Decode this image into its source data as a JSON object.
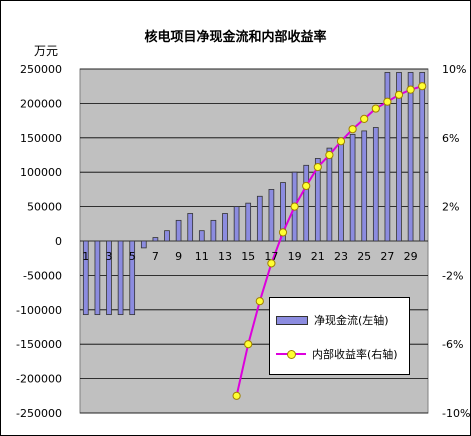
{
  "chart_data": {
    "type": "bar+line",
    "title": "核电项目净现金流和内部收益率",
    "left_axis": {
      "unit": "万元",
      "ylim": [
        -250000,
        250000
      ],
      "ticks": [
        "250000",
        "200000",
        "150000",
        "100000",
        "50000",
        "0",
        "-50000",
        "-100000",
        "-150000",
        "-200000",
        "-250000"
      ],
      "tick_values": [
        250000,
        200000,
        150000,
        100000,
        50000,
        0,
        -50000,
        -100000,
        -150000,
        -200000,
        -250000
      ]
    },
    "right_axis": {
      "ylim": [
        -10,
        10
      ],
      "ticks": [
        "10%",
        "6%",
        "2%",
        "-2%",
        "-6%",
        "-10%"
      ],
      "tick_values": [
        10,
        6,
        2,
        -2,
        -6,
        -10
      ]
    },
    "x": [
      1,
      2,
      3,
      4,
      5,
      6,
      7,
      8,
      9,
      10,
      11,
      12,
      13,
      14,
      15,
      16,
      17,
      18,
      19,
      20,
      21,
      22,
      23,
      24,
      25,
      26,
      27,
      28,
      29,
      30
    ],
    "x_tick_labels": [
      "1",
      "3",
      "5",
      "7",
      "9",
      "11",
      "13",
      "15",
      "17",
      "19",
      "21",
      "23",
      "25",
      "27",
      "29"
    ],
    "x_tick_values": [
      1,
      3,
      5,
      7,
      9,
      11,
      13,
      15,
      17,
      19,
      21,
      23,
      25,
      27,
      29
    ],
    "series": [
      {
        "name": "净现金流(左轴)",
        "type": "bar",
        "axis": "left",
        "values": [
          -107000,
          -107000,
          -107000,
          -107000,
          -107000,
          -10000,
          5000,
          15000,
          30000,
          40000,
          15000,
          30000,
          40000,
          50000,
          55000,
          65000,
          75000,
          85000,
          100000,
          110000,
          120000,
          135000,
          145000,
          155000,
          160000,
          165000,
          245000,
          245000,
          245000,
          245000
        ]
      },
      {
        "name": "内部收益率(右轴)",
        "type": "line",
        "axis": "right",
        "x": [
          14,
          15,
          16,
          17,
          18,
          19,
          20,
          21,
          22,
          23,
          24,
          25,
          26,
          27,
          28,
          29,
          30
        ],
        "values": [
          -9.0,
          -6.0,
          -3.5,
          -1.3,
          0.5,
          2.0,
          3.2,
          4.3,
          5.0,
          5.8,
          6.5,
          7.1,
          7.7,
          8.1,
          8.5,
          8.8,
          9.0
        ]
      }
    ],
    "grid": "horizontal major gridlines",
    "legend_position": "bottom-right"
  },
  "colors": {
    "plot_background": "#c0c0c0",
    "bar_fill": "#8c8ce0",
    "bar_edge": "#333333",
    "line": "#dd00dd",
    "marker_fill": "#ffff33",
    "marker_edge": "#a08000"
  }
}
